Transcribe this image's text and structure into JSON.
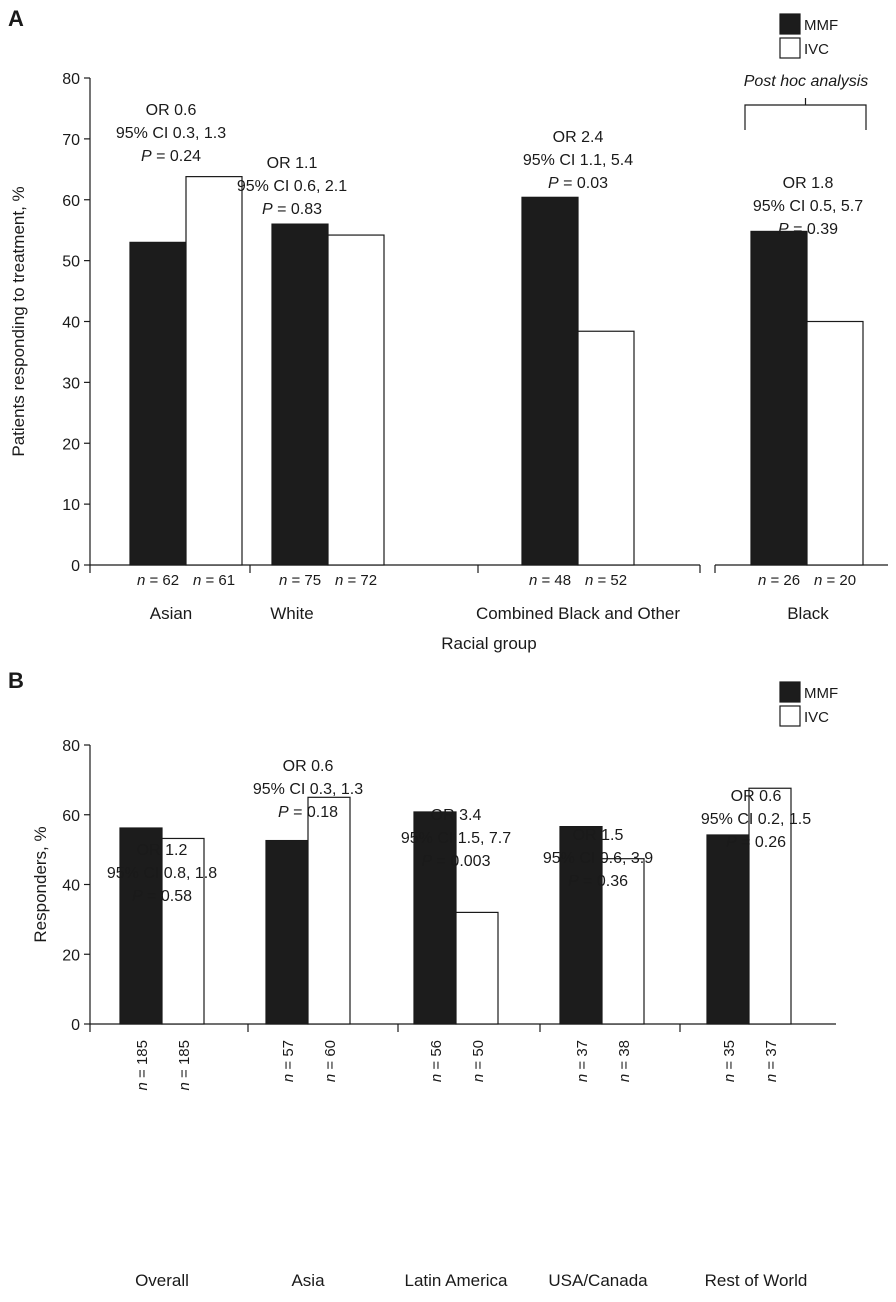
{
  "colors": {
    "MMF": "#1c1c1c",
    "IVC": "#ffffff",
    "stroke": "#1a1a1a"
  },
  "chart_data": [
    {
      "panel": "A",
      "type": "bar",
      "ylabel": "Patients responding to treatment, %",
      "xlabel": "Racial group",
      "ylim": [
        0,
        80
      ],
      "yticks": [
        "0",
        "10",
        "20",
        "30",
        "40",
        "50",
        "60",
        "70",
        "80"
      ],
      "legend": [
        {
          "name": "MMF"
        },
        {
          "name": "IVC"
        }
      ],
      "legend_position": "top-right",
      "categories": [
        "Asian",
        "White",
        "Combined Black and Other",
        "Black"
      ],
      "series": [
        {
          "name": "MMF",
          "values": [
            53,
            56,
            60.4,
            54.8
          ]
        },
        {
          "name": "IVC",
          "values": [
            63.8,
            54.2,
            38.4,
            40
          ]
        }
      ],
      "n_labels": [
        [
          "n = 62",
          "n = 61"
        ],
        [
          "n = 75",
          "n = 72"
        ],
        [
          "n = 48",
          "n = 52"
        ],
        [
          "n = 26",
          "n = 20"
        ]
      ],
      "annotations": [
        {
          "or": "OR  0.6",
          "ci": "95% CI  0.3, 1.3",
          "p": "P = 0.24"
        },
        {
          "or": "OR  1.1",
          "ci": "95% CI  0.6, 2.1",
          "p": "P = 0.83"
        },
        {
          "or": "OR  2.4",
          "ci": "95% CI  1.1, 5.4",
          "p": "P = 0.03"
        },
        {
          "or": "OR  1.8",
          "ci": "95% CI  0.5, 5.7",
          "p": "P =  0.39"
        }
      ],
      "post_hoc_label": "Post hoc analysis"
    },
    {
      "panel": "B",
      "type": "bar",
      "ylabel": "Responders, %",
      "xlabel": "",
      "ylim": [
        0,
        80
      ],
      "yticks": [
        "0",
        "20",
        "40",
        "60",
        "80"
      ],
      "legend": [
        {
          "name": "MMF"
        },
        {
          "name": "IVC"
        }
      ],
      "legend_position": "top-right",
      "categories": [
        "Overall",
        "Asia",
        "Latin America",
        "USA/Canada",
        "Rest of World"
      ],
      "series": [
        {
          "name": "MMF",
          "values": [
            56.2,
            52.6,
            60.8,
            56.6,
            54.2
          ]
        },
        {
          "name": "IVC",
          "values": [
            53.2,
            65,
            32,
            47.4,
            67.6
          ]
        }
      ],
      "n_labels": [
        [
          "n = 185",
          "n = 185"
        ],
        [
          "n = 57",
          "n = 60"
        ],
        [
          "n = 56",
          "n = 50"
        ],
        [
          "n = 37",
          "n = 38"
        ],
        [
          "n = 35",
          "n = 37"
        ]
      ],
      "annotations": [
        {
          "or": "OR  1.2",
          "ci": "95% CI  0.8, 1.8",
          "p": "P = 0.58"
        },
        {
          "or": "OR  0.6",
          "ci": "95% CI  0.3, 1.3",
          "p": "P = 0.18"
        },
        {
          "or": "OR  3.4",
          "ci": "95% CI  1.5, 7.7",
          "p": "P = 0.003"
        },
        {
          "or": "OR  1.5",
          "ci": "95% CI  0.6, 3.9",
          "p": "P = 0.36"
        },
        {
          "or": "OR  0.6",
          "ci": "95% CI  0.2, 1.5",
          "p": "P = 0.26"
        }
      ]
    }
  ]
}
